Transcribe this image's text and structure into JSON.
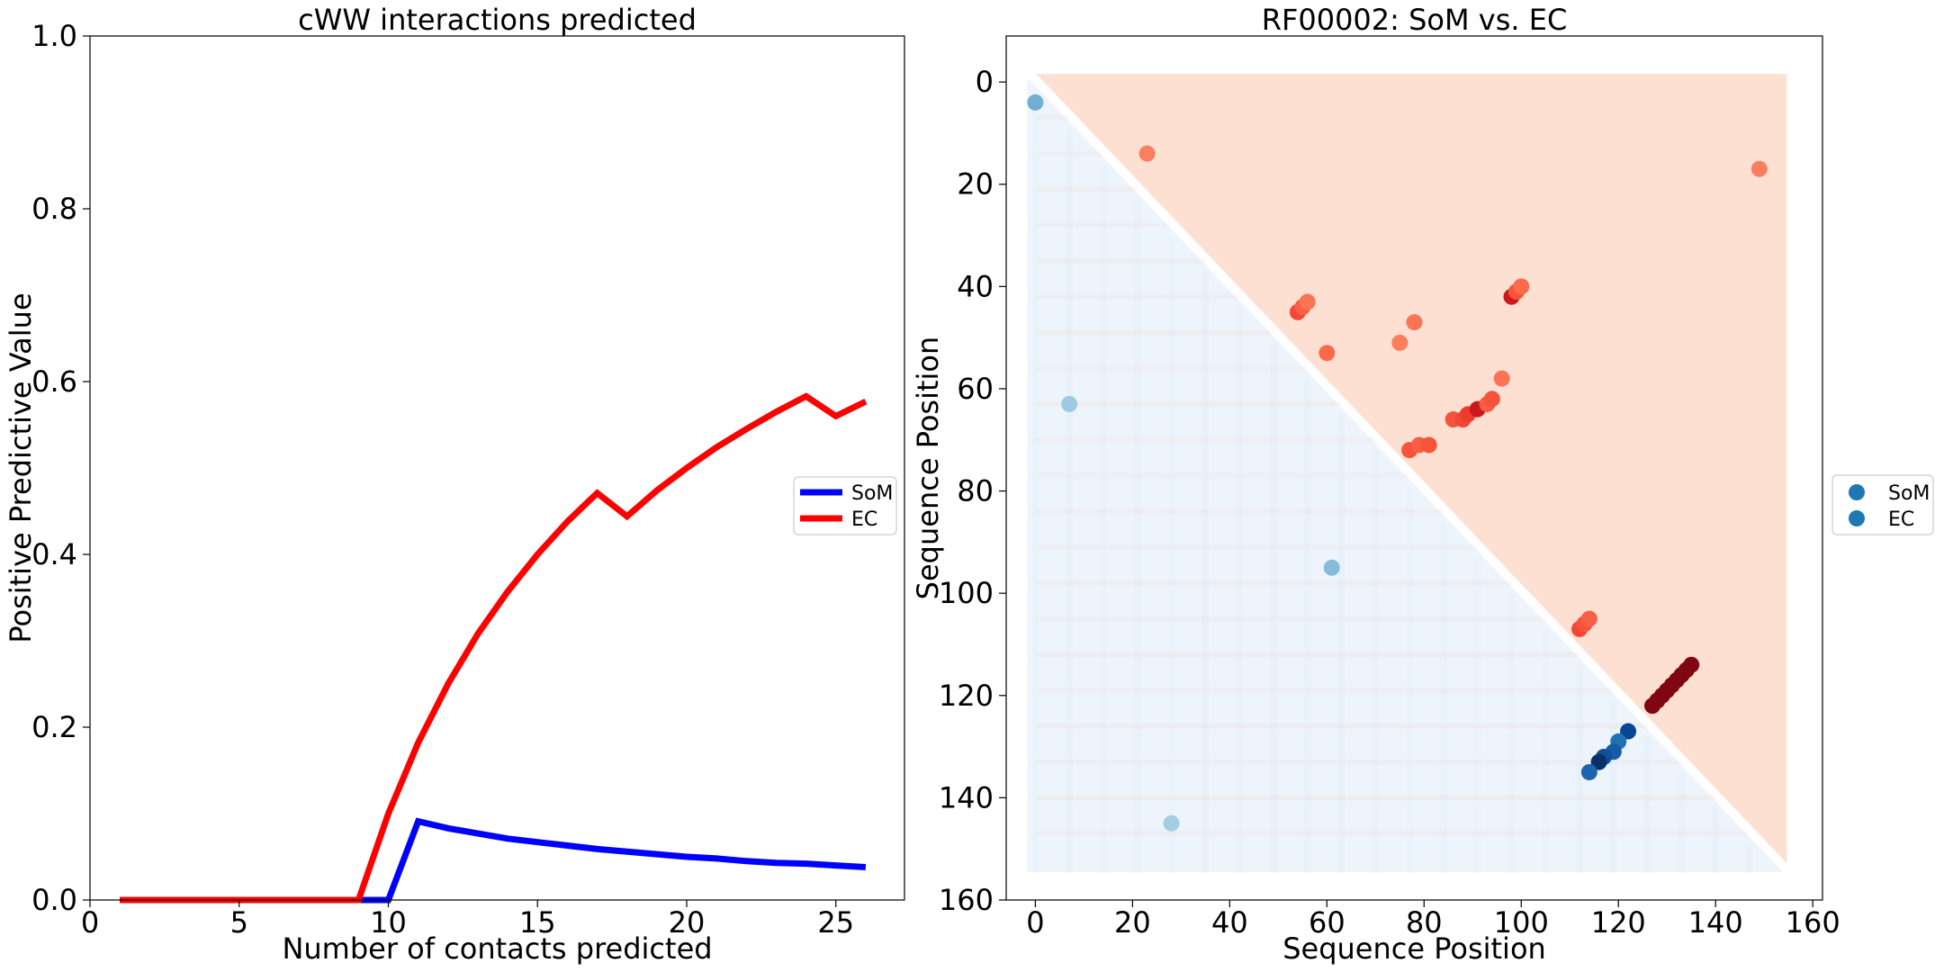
{
  "chart_data": [
    {
      "type": "line",
      "title": "cWW interactions predicted",
      "xlabel": "Number of contacts predicted",
      "ylabel": "Positive Predictive Value",
      "xlim": [
        0,
        27.3
      ],
      "ylim": [
        0,
        1.0
      ],
      "xticks": [
        0,
        5,
        10,
        15,
        20,
        25
      ],
      "yticks": [
        0.0,
        0.2,
        0.4,
        0.6,
        0.8,
        1.0
      ],
      "xtick_labels": [
        "0",
        "5",
        "10",
        "15",
        "20",
        "25"
      ],
      "ytick_labels": [
        "0.0",
        "0.2",
        "0.4",
        "0.6",
        "0.8",
        "1.0"
      ],
      "legend_position": "center-right",
      "x": [
        1,
        2,
        3,
        4,
        5,
        6,
        7,
        8,
        9,
        10,
        11,
        12,
        13,
        14,
        15,
        16,
        17,
        18,
        19,
        20,
        21,
        22,
        23,
        24,
        25,
        26
      ],
      "series": [
        {
          "name": "SoM",
          "color": "#0000ff",
          "values": [
            0,
            0,
            0,
            0,
            0,
            0,
            0,
            0,
            0,
            0,
            0.091,
            0.083,
            0.077,
            0.071,
            0.067,
            0.063,
            0.059,
            0.056,
            0.053,
            0.05,
            0.048,
            0.045,
            0.043,
            0.042,
            0.04,
            0.038
          ]
        },
        {
          "name": "EC",
          "color": "#ff0000",
          "values": [
            0,
            0,
            0,
            0,
            0,
            0,
            0,
            0,
            0,
            0.1,
            0.182,
            0.25,
            0.308,
            0.357,
            0.4,
            0.438,
            0.471,
            0.444,
            0.474,
            0.5,
            0.524,
            0.545,
            0.565,
            0.583,
            0.56,
            0.577
          ]
        }
      ]
    },
    {
      "type": "scatter",
      "title": "RF00002: SoM vs. EC",
      "xlabel": "Sequence Position",
      "ylabel": "Sequence Position",
      "xlim": [
        -6,
        162
      ],
      "ylim": [
        160,
        -9
      ],
      "xticks": [
        0,
        20,
        40,
        60,
        80,
        100,
        120,
        140,
        160
      ],
      "yticks": [
        0,
        20,
        40,
        60,
        80,
        100,
        120,
        140,
        160
      ],
      "xtick_labels": [
        "0",
        "20",
        "40",
        "60",
        "80",
        "100",
        "120",
        "140",
        "160"
      ],
      "ytick_labels": [
        "0",
        "20",
        "40",
        "60",
        "80",
        "100",
        "120",
        "140",
        "160"
      ],
      "matrix_size": 154,
      "legend_position": "outside-right",
      "legend": [
        {
          "name": "SoM",
          "color": "#1f77b4"
        },
        {
          "name": "EC",
          "color": "#1f77b4"
        }
      ],
      "background_colors": {
        "som_lower": "#edf4fc",
        "ec_upper": "#fde0d2"
      },
      "series": [
        {
          "name": "SoM",
          "triangle": "lower",
          "colormap": "Blues",
          "points": [
            {
              "x": 0,
              "y": 4,
              "value": 0.3
            },
            {
              "x": 7,
              "y": 63,
              "value": 0.2
            },
            {
              "x": 61,
              "y": 95,
              "value": 0.25
            },
            {
              "x": 28,
              "y": 145,
              "value": 0.18
            },
            {
              "x": 122,
              "y": 127,
              "value": 0.8
            },
            {
              "x": 120,
              "y": 129,
              "value": 0.6
            },
            {
              "x": 119,
              "y": 131,
              "value": 0.7
            },
            {
              "x": 117,
              "y": 132,
              "value": 0.75
            },
            {
              "x": 116,
              "y": 133,
              "value": 1.0
            },
            {
              "x": 114,
              "y": 135,
              "value": 0.65
            }
          ]
        },
        {
          "name": "EC",
          "triangle": "upper",
          "colormap": "Reds",
          "points": [
            {
              "x": 98,
              "y": 42,
              "value": 0.8
            },
            {
              "x": 99,
              "y": 41,
              "value": 0.5
            },
            {
              "x": 100,
              "y": 40,
              "value": 0.4
            },
            {
              "x": 54,
              "y": 45,
              "value": 0.55
            },
            {
              "x": 55,
              "y": 44,
              "value": 0.45
            },
            {
              "x": 56,
              "y": 43,
              "value": 0.35
            },
            {
              "x": 60,
              "y": 53,
              "value": 0.4
            },
            {
              "x": 78,
              "y": 47,
              "value": 0.35
            },
            {
              "x": 75,
              "y": 51,
              "value": 0.3
            },
            {
              "x": 86,
              "y": 66,
              "value": 0.5
            },
            {
              "x": 88,
              "y": 66,
              "value": 0.55
            },
            {
              "x": 89,
              "y": 65,
              "value": 0.6
            },
            {
              "x": 91,
              "y": 64,
              "value": 0.8
            },
            {
              "x": 93,
              "y": 63,
              "value": 0.45
            },
            {
              "x": 94,
              "y": 62,
              "value": 0.5
            },
            {
              "x": 96,
              "y": 58,
              "value": 0.35
            },
            {
              "x": 77,
              "y": 72,
              "value": 0.5
            },
            {
              "x": 79,
              "y": 71,
              "value": 0.45
            },
            {
              "x": 81,
              "y": 71,
              "value": 0.5
            },
            {
              "x": 112,
              "y": 107,
              "value": 0.55
            },
            {
              "x": 113,
              "y": 106,
              "value": 0.5
            },
            {
              "x": 114,
              "y": 105,
              "value": 0.45
            },
            {
              "x": 23,
              "y": 14,
              "value": 0.3
            },
            {
              "x": 149,
              "y": 17,
              "value": 0.3
            },
            {
              "x": 127,
              "y": 122,
              "value": 0.95
            },
            {
              "x": 128,
              "y": 121,
              "value": 0.95
            },
            {
              "x": 129,
              "y": 120,
              "value": 0.95
            },
            {
              "x": 130,
              "y": 119,
              "value": 0.95
            },
            {
              "x": 131,
              "y": 118,
              "value": 0.95
            },
            {
              "x": 132,
              "y": 117,
              "value": 0.95
            },
            {
              "x": 133,
              "y": 116,
              "value": 0.95
            },
            {
              "x": 134,
              "y": 115,
              "value": 0.95
            },
            {
              "x": 135,
              "y": 114,
              "value": 0.95
            }
          ]
        }
      ]
    }
  ]
}
